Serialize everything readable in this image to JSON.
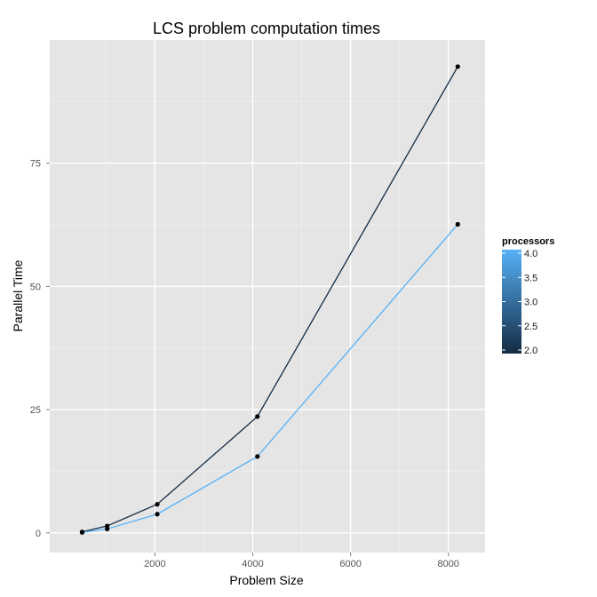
{
  "chart_data": {
    "type": "line",
    "title": "LCS problem computation times",
    "xlabel": "Problem Size",
    "ylabel": "Parallel Time",
    "xlim": [
      -150,
      8750
    ],
    "ylim": [
      -4,
      100
    ],
    "x_ticks": [
      2000,
      4000,
      6000,
      8000
    ],
    "y_ticks": [
      0,
      25,
      50,
      75
    ],
    "x_tick_labels": [
      "2000",
      "4000",
      "6000",
      "8000"
    ],
    "y_tick_labels": [
      "0",
      "25",
      "50",
      "75"
    ],
    "grid": true,
    "legend": {
      "title": "processors",
      "position": "right",
      "type": "colorbar",
      "range": [
        2.0,
        4.0
      ],
      "tick_labels": [
        "4.0",
        "3.5",
        "3.0",
        "2.5",
        "2.0"
      ],
      "colors": {
        "low": "#132B43",
        "high": "#56B1F7"
      }
    },
    "series": [
      {
        "processors": 2,
        "color": "#132B43",
        "x": [
          512,
          1024,
          2048,
          4096,
          8192
        ],
        "y": [
          0.2,
          1.4,
          5.8,
          23.6,
          94.6
        ]
      },
      {
        "processors": 4,
        "color": "#56B1F7",
        "x": [
          512,
          1024,
          2048,
          4096,
          8192
        ],
        "y": [
          0.1,
          0.8,
          3.8,
          15.5,
          62.6
        ]
      }
    ],
    "colors": {
      "panel_background": "#E5E5E5",
      "grid_major": "#FFFFFF",
      "grid_minor": "#F2F2F2",
      "point": "#000000"
    }
  }
}
